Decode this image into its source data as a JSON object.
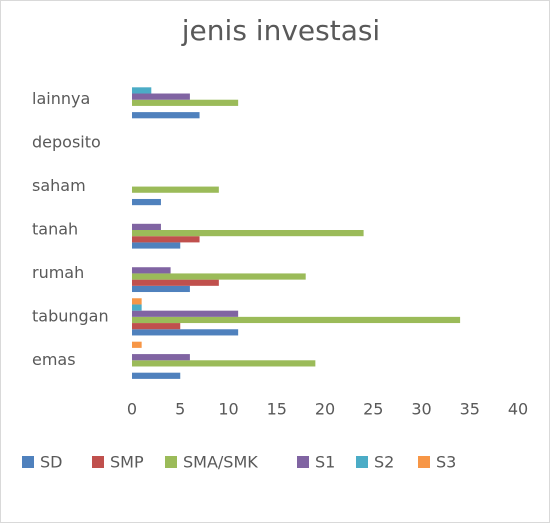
{
  "chart_data": {
    "type": "hbar",
    "title": "jenis investasi",
    "categories": [
      "emas",
      "tabungan",
      "rumah",
      "tanah",
      "saham",
      "deposito",
      "lainnya"
    ],
    "series": [
      {
        "name": "SD",
        "color": "#4f81bd",
        "values": [
          5,
          11,
          6,
          5,
          3,
          0,
          7
        ]
      },
      {
        "name": "SMP",
        "color": "#c0504d",
        "values": [
          0,
          5,
          9,
          7,
          0,
          0,
          0
        ]
      },
      {
        "name": "SMA/SMK",
        "color": "#9bbb59",
        "values": [
          19,
          34,
          18,
          24,
          9,
          0,
          11
        ]
      },
      {
        "name": "S1",
        "color": "#8064a2",
        "values": [
          6,
          11,
          4,
          3,
          0,
          0,
          6
        ]
      },
      {
        "name": "S2",
        "color": "#4bacc6",
        "values": [
          0,
          1,
          0,
          0,
          0,
          0,
          2
        ]
      },
      {
        "name": "S3",
        "color": "#f79646",
        "values": [
          1,
          1,
          0,
          0,
          0,
          0,
          0
        ]
      }
    ],
    "xlim": [
      0,
      40
    ],
    "xticks": [
      0,
      5,
      10,
      15,
      20,
      25,
      30,
      35,
      40
    ],
    "grid": false,
    "legend": "bottom"
  }
}
